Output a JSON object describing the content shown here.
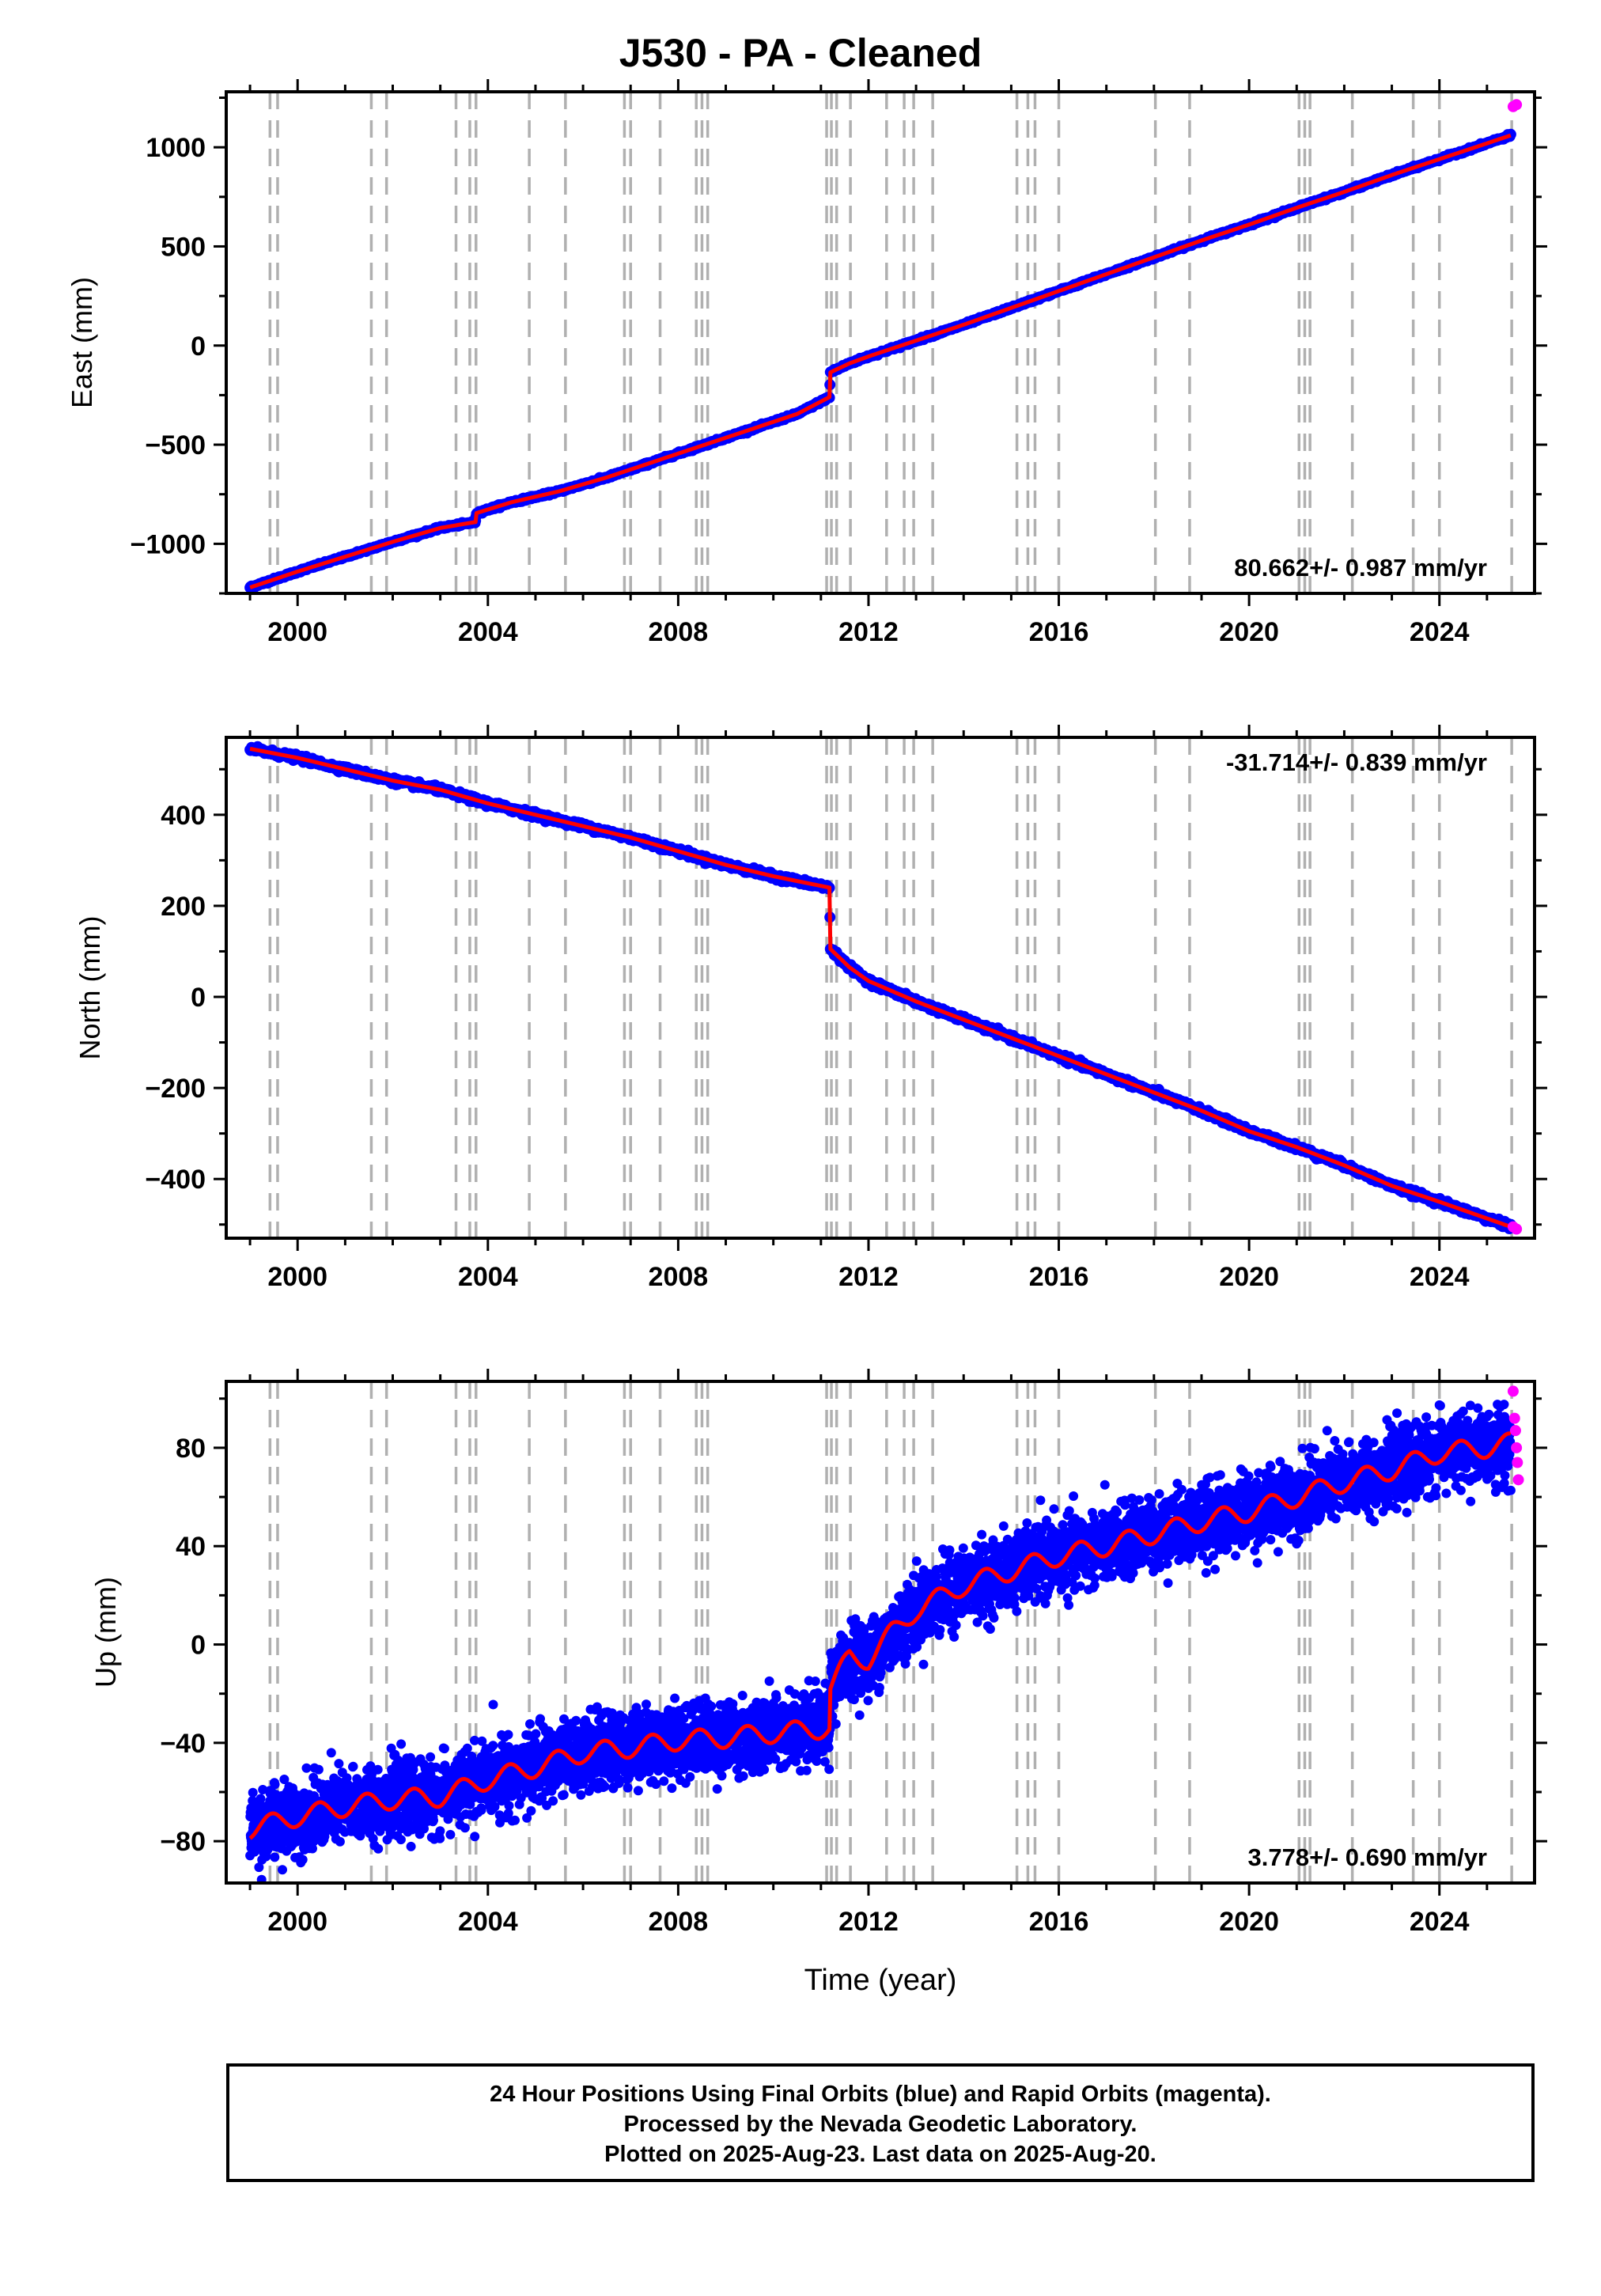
{
  "title": "J530  - PA - Cleaned",
  "colors": {
    "final_orbits": "#0000ff",
    "rapid_orbits": "#ff00ff",
    "model_fit": "#ff0000",
    "event_lines": "#b0b0b0"
  },
  "event_lines_year": [
    1999.42,
    1999.58,
    2001.55,
    2001.87,
    2003.33,
    2003.62,
    2003.75,
    2004.87,
    2005.63,
    2006.87,
    2007.0,
    2007.62,
    2008.38,
    2008.5,
    2008.62,
    2011.12,
    2011.22,
    2011.33,
    2011.62,
    2012.38,
    2012.75,
    2012.95,
    2013.35,
    2015.12,
    2015.35,
    2015.5,
    2016.0,
    2018.03,
    2018.75,
    2021.05,
    2021.17,
    2021.28,
    2022.17,
    2023.45,
    2024.0,
    2025.52
  ],
  "chart_data": [
    {
      "type": "scatter",
      "panel": "east",
      "ylabel": "East (mm)",
      "xlabel": "",
      "xlim": [
        1998.5,
        2026.0
      ],
      "ylim": [
        -1250,
        1280
      ],
      "xticks": [
        2000,
        2004,
        2008,
        2012,
        2016,
        2020,
        2024
      ],
      "yticks": [
        -1000,
        -500,
        0,
        500,
        1000
      ],
      "tick_labels": [
        "−1000",
        "−500",
        "0",
        "500",
        "1000"
      ],
      "rate_label": "80.662+/- 0.987 mm/yr",
      "rate_label_position": "bottom-right",
      "grid": false,
      "series": [
        {
          "name": "Final Orbits",
          "color": "#0000ff",
          "x": [
            1999.0,
            2000.0,
            2001.0,
            2002.0,
            2003.0,
            2003.74,
            2003.76,
            2004.5,
            2005.5,
            2006.5,
            2007.5,
            2008.5,
            2009.5,
            2010.5,
            2011.18,
            2011.2,
            2011.6,
            2012.0,
            2013.0,
            2014.0,
            2015.0,
            2016.0,
            2017.0,
            2018.0,
            2019.0,
            2020.0,
            2021.0,
            2022.0,
            2023.0,
            2024.0,
            2025.0,
            2025.5
          ],
          "y": [
            -1220,
            -1140,
            -1065,
            -990,
            -920,
            -890,
            -845,
            -790,
            -735,
            -665,
            -585,
            -505,
            -425,
            -345,
            -260,
            -135,
            -90,
            -55,
            25,
            105,
            190,
            275,
            360,
            445,
            530,
            610,
            695,
            775,
            860,
            940,
            1020,
            1060
          ]
        },
        {
          "name": "Rapid Orbits",
          "color": "#ff00ff",
          "x": [
            2025.55,
            2025.62
          ],
          "y": [
            1205,
            1215
          ]
        }
      ]
    },
    {
      "type": "scatter",
      "panel": "north",
      "ylabel": "North (mm)",
      "xlabel": "",
      "xlim": [
        1998.5,
        2026.0
      ],
      "ylim": [
        -530,
        570
      ],
      "xticks": [
        2000,
        2004,
        2008,
        2012,
        2016,
        2020,
        2024
      ],
      "yticks": [
        -400,
        -200,
        0,
        200,
        400
      ],
      "tick_labels": [
        "−400",
        "−200",
        "0",
        "200",
        "400"
      ],
      "rate_label": "-31.714+/- 0.839 mm/yr",
      "rate_label_position": "top-right",
      "grid": false,
      "series": [
        {
          "name": "Final Orbits",
          "color": "#0000ff",
          "x": [
            1999.0,
            2000.0,
            2001.0,
            2002.0,
            2003.0,
            2003.5,
            2004.0,
            2005.0,
            2006.0,
            2007.0,
            2008.0,
            2009.0,
            2010.0,
            2011.18,
            2011.2,
            2011.6,
            2012.0,
            2013.0,
            2014.0,
            2015.0,
            2016.0,
            2017.0,
            2018.0,
            2019.0,
            2020.0,
            2021.0,
            2022.0,
            2023.0,
            2024.0,
            2025.5
          ],
          "y": [
            545,
            525,
            500,
            475,
            455,
            440,
            425,
            400,
            375,
            350,
            320,
            290,
            265,
            240,
            105,
            65,
            35,
            -10,
            -50,
            -90,
            -130,
            -170,
            -210,
            -250,
            -295,
            -330,
            -370,
            -415,
            -450,
            -505
          ]
        },
        {
          "name": "Rapid Orbits",
          "color": "#ff00ff",
          "x": [
            2025.55,
            2025.62
          ],
          "y": [
            -505,
            -510
          ]
        }
      ]
    },
    {
      "type": "scatter",
      "panel": "up",
      "ylabel": "Up (mm)",
      "xlabel": "Time (year)",
      "xlim": [
        1998.5,
        2026.0
      ],
      "ylim": [
        -97,
        107
      ],
      "xticks": [
        2000,
        2004,
        2008,
        2012,
        2016,
        2020,
        2024
      ],
      "yticks": [
        -80,
        -40,
        0,
        40,
        80
      ],
      "tick_labels": [
        "−80",
        "−40",
        "0",
        "40",
        "80"
      ],
      "rate_label": "3.778+/- 0.690 mm/yr",
      "rate_label_position": "bottom-right",
      "grid": false,
      "series": [
        {
          "name": "Final Orbits",
          "color": "#0000ff",
          "x": [
            1999.0,
            2000.0,
            2001.0,
            2002.0,
            2003.0,
            2004.0,
            2005.0,
            2006.0,
            2007.0,
            2008.0,
            2009.0,
            2010.0,
            2011.18,
            2011.2,
            2011.6,
            2012.0,
            2012.5,
            2013.0,
            2014.0,
            2015.0,
            2016.0,
            2017.0,
            2018.0,
            2019.0,
            2020.0,
            2021.0,
            2022.0,
            2023.0,
            2024.0,
            2025.0,
            2025.5
          ],
          "y": [
            -75,
            -70,
            -66,
            -63,
            -62,
            -55,
            -50,
            -44,
            -42,
            -39,
            -38,
            -36,
            -34,
            -18,
            -5,
            -6,
            5,
            14,
            24,
            30,
            36,
            40,
            45,
            50,
            54,
            60,
            66,
            71,
            78,
            80,
            82
          ],
          "scatter_sd": 7
        },
        {
          "name": "Rapid Orbits",
          "color": "#ff00ff",
          "x": [
            2025.55,
            2025.58,
            2025.6,
            2025.62,
            2025.64,
            2025.66
          ],
          "y": [
            103,
            92,
            87,
            80,
            74,
            67
          ]
        }
      ]
    }
  ],
  "footer": {
    "line1": "24 Hour Positions Using Final Orbits (blue) and Rapid Orbits (magenta).",
    "line2": "Processed by the Nevada Geodetic Laboratory.",
    "line3": "Plotted on 2025-Aug-23. Last data on 2025-Aug-20."
  }
}
